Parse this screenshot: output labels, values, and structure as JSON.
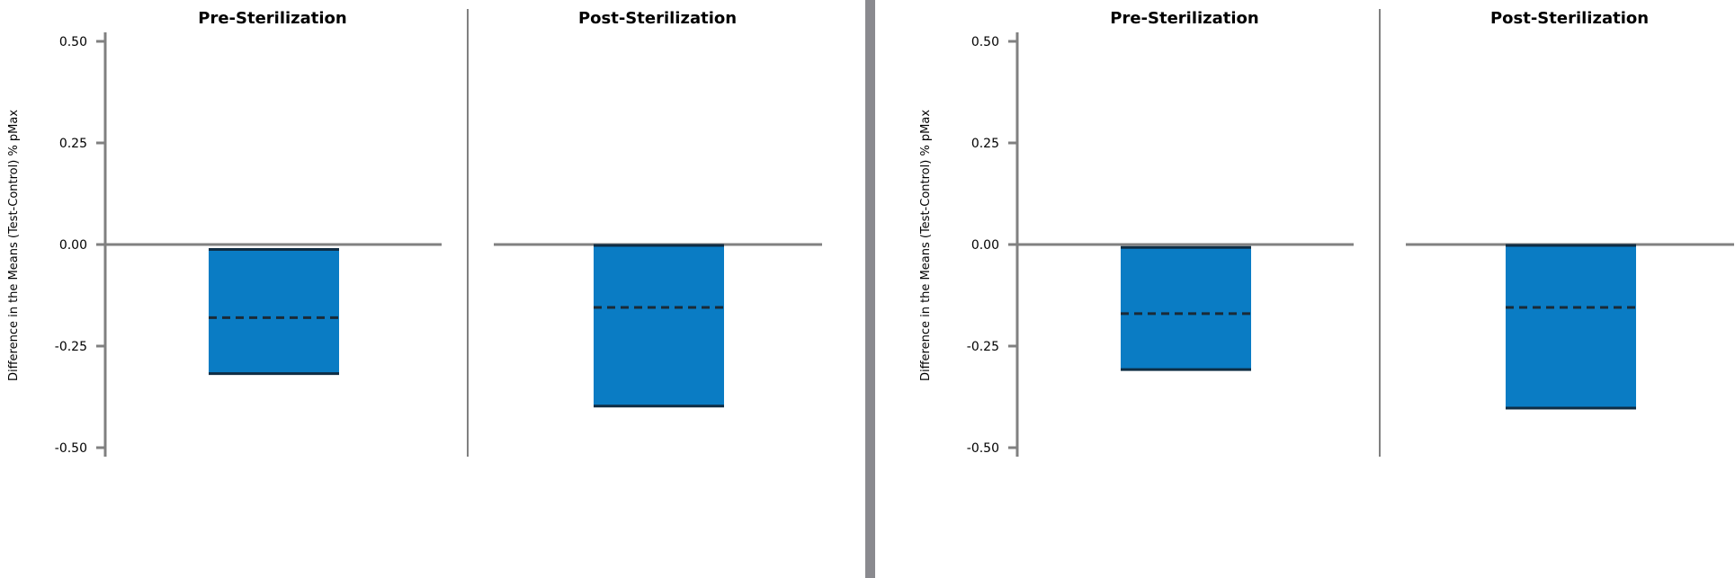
{
  "colors": {
    "bar": "#0a7cc4",
    "bound": "#0f2d44",
    "mean_line": "#1b2a36",
    "axis": "#808080",
    "divider": "#8a8a8f"
  },
  "chart_data": [
    {
      "type": "bar",
      "ylabel": "Difference in the Means (Test-Control) % pMax",
      "ylim": [
        -0.5,
        0.5
      ],
      "yticks": [
        0.5,
        0.25,
        0.0,
        -0.25,
        -0.5
      ],
      "ytick_labels": [
        "0.50",
        "0.25",
        "0.00",
        "-0.25",
        "-0.50"
      ],
      "panels": [
        {
          "title": "Pre-Sterilization",
          "upper": -0.01,
          "mean": -0.18,
          "lower": -0.32
        },
        {
          "title": "Post-Sterilization",
          "upper": 0.0,
          "mean": -0.155,
          "lower": -0.4
        }
      ]
    },
    {
      "type": "bar",
      "ylabel": "Difference in the Means (Test-Control) % pMax",
      "ylim": [
        -0.5,
        0.5
      ],
      "yticks": [
        0.5,
        0.25,
        0.0,
        -0.25,
        -0.5
      ],
      "ytick_labels": [
        "0.50",
        "0.25",
        "0.00",
        "-0.25",
        "-0.50"
      ],
      "panels": [
        {
          "title": "Pre-Sterilization",
          "upper": -0.005,
          "mean": -0.17,
          "lower": -0.31
        },
        {
          "title": "Post-Sterilization",
          "upper": 0.0,
          "mean": -0.155,
          "lower": -0.405
        }
      ]
    }
  ]
}
